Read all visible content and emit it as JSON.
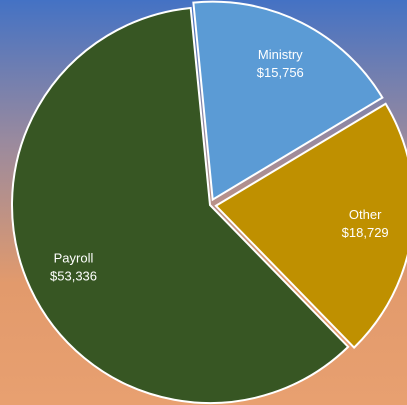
{
  "chart_data": {
    "type": "pie",
    "categories": [
      "Ministry",
      "Other",
      "Payroll"
    ],
    "values": [
      15756,
      18729,
      53336
    ],
    "value_labels": [
      "$15,756",
      "$18,729",
      "$53,336"
    ],
    "colors": [
      "#5b9bd5",
      "#bf9000",
      "#375623"
    ]
  }
}
